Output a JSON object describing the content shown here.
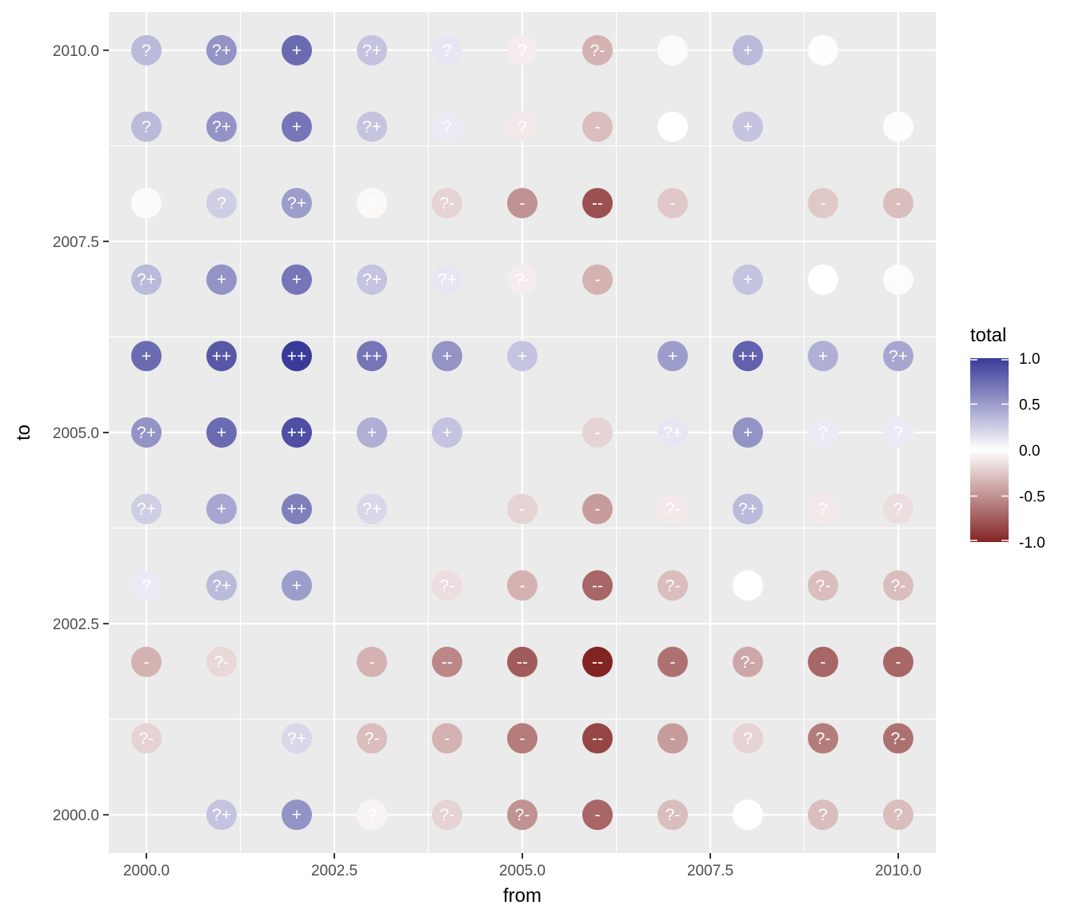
{
  "chart_data": {
    "type": "scatter",
    "title": "",
    "xlabel": "from",
    "ylabel": "to",
    "xlim": [
      1999.5,
      2010.5
    ],
    "ylim": [
      1999.5,
      2010.5
    ],
    "x_ticks": [
      2000,
      2002.5,
      2005,
      2007.5,
      2010
    ],
    "y_ticks": [
      2000,
      2002.5,
      2005,
      2007.5,
      2010
    ],
    "x_tick_labels": [
      "2000.0",
      "2002.5",
      "2005.0",
      "2007.5",
      "2010.0"
    ],
    "y_tick_labels": [
      "2000.0",
      "2002.5",
      "2005.0",
      "2007.5",
      "2010.0"
    ],
    "grid": true,
    "legend": {
      "title": "total",
      "position": "right",
      "range": [
        -1,
        1
      ],
      "breaks": [
        1.0,
        0.5,
        0.0,
        -0.5,
        -1.0
      ],
      "break_labels": [
        "1.0",
        "0.5",
        "0.0",
        "-0.5",
        "-1.0"
      ],
      "low_color": "#832424",
      "mid_color": "#ffffff",
      "high_color": "#3a3a98"
    },
    "point_columns": [
      "from",
      "to",
      "total",
      "label"
    ],
    "points": [
      [
        2000,
        2010,
        0.35,
        "?"
      ],
      [
        2001,
        2010,
        0.55,
        "?+"
      ],
      [
        2002,
        2010,
        0.75,
        "+"
      ],
      [
        2003,
        2010,
        0.3,
        "?+"
      ],
      [
        2004,
        2010,
        0.12,
        "?"
      ],
      [
        2005,
        2010,
        -0.08,
        "?"
      ],
      [
        2006,
        2010,
        -0.35,
        "?-"
      ],
      [
        2007,
        2010,
        0.02,
        "?"
      ],
      [
        2008,
        2010,
        0.35,
        "+"
      ],
      [
        2009,
        2010,
        0.01,
        "?"
      ],
      [
        2000,
        2009,
        0.35,
        "?"
      ],
      [
        2001,
        2009,
        0.55,
        "?+"
      ],
      [
        2002,
        2009,
        0.7,
        "+"
      ],
      [
        2003,
        2009,
        0.3,
        "?+"
      ],
      [
        2004,
        2009,
        0.1,
        "?"
      ],
      [
        2005,
        2009,
        -0.1,
        "?"
      ],
      [
        2006,
        2009,
        -0.3,
        "-"
      ],
      [
        2007,
        2009,
        0.0,
        "?"
      ],
      [
        2008,
        2009,
        0.3,
        "+"
      ],
      [
        2010,
        2009,
        -0.01,
        "?"
      ],
      [
        2000,
        2008,
        0.02,
        "?"
      ],
      [
        2001,
        2008,
        0.25,
        "?"
      ],
      [
        2002,
        2008,
        0.5,
        "?+"
      ],
      [
        2003,
        2008,
        -0.03,
        "?"
      ],
      [
        2004,
        2008,
        -0.2,
        "?-"
      ],
      [
        2005,
        2008,
        -0.5,
        "-"
      ],
      [
        2006,
        2008,
        -0.8,
        "--"
      ],
      [
        2007,
        2008,
        -0.25,
        "-"
      ],
      [
        2009,
        2008,
        -0.25,
        "-"
      ],
      [
        2010,
        2008,
        -0.3,
        "-"
      ],
      [
        2000,
        2007,
        0.35,
        "?+"
      ],
      [
        2001,
        2007,
        0.55,
        "+"
      ],
      [
        2002,
        2007,
        0.7,
        "+"
      ],
      [
        2003,
        2007,
        0.3,
        "?+"
      ],
      [
        2004,
        2007,
        0.12,
        "?+"
      ],
      [
        2005,
        2007,
        -0.08,
        "?-"
      ],
      [
        2006,
        2007,
        -0.35,
        "-"
      ],
      [
        2008,
        2007,
        0.3,
        "+"
      ],
      [
        2009,
        2007,
        0.0,
        "?"
      ],
      [
        2010,
        2007,
        -0.02,
        "?"
      ],
      [
        2000,
        2006,
        0.75,
        "+"
      ],
      [
        2001,
        2006,
        0.85,
        "++"
      ],
      [
        2002,
        2006,
        1.0,
        "++"
      ],
      [
        2003,
        2006,
        0.7,
        "++"
      ],
      [
        2004,
        2006,
        0.55,
        "+"
      ],
      [
        2005,
        2006,
        0.3,
        "+"
      ],
      [
        2007,
        2006,
        0.5,
        "+"
      ],
      [
        2008,
        2006,
        0.8,
        "++"
      ],
      [
        2009,
        2006,
        0.4,
        "+"
      ],
      [
        2010,
        2006,
        0.45,
        "?+"
      ],
      [
        2000,
        2005,
        0.55,
        "?+"
      ],
      [
        2001,
        2005,
        0.75,
        "+"
      ],
      [
        2002,
        2005,
        0.9,
        "++"
      ],
      [
        2003,
        2005,
        0.4,
        "+"
      ],
      [
        2004,
        2005,
        0.3,
        "+"
      ],
      [
        2006,
        2005,
        -0.2,
        "-"
      ],
      [
        2007,
        2005,
        0.12,
        "?+"
      ],
      [
        2008,
        2005,
        0.55,
        "+"
      ],
      [
        2009,
        2005,
        0.1,
        "?"
      ],
      [
        2010,
        2005,
        0.1,
        "?"
      ],
      [
        2000,
        2004,
        0.25,
        "?+"
      ],
      [
        2001,
        2004,
        0.45,
        "+"
      ],
      [
        2002,
        2004,
        0.65,
        "++"
      ],
      [
        2003,
        2004,
        0.2,
        "?+"
      ],
      [
        2005,
        2004,
        -0.2,
        "-"
      ],
      [
        2006,
        2004,
        -0.45,
        "-"
      ],
      [
        2007,
        2004,
        -0.1,
        "?-"
      ],
      [
        2008,
        2004,
        0.35,
        "?+"
      ],
      [
        2009,
        2004,
        -0.1,
        "?"
      ],
      [
        2010,
        2004,
        -0.15,
        "?"
      ],
      [
        2000,
        2003,
        0.1,
        "?"
      ],
      [
        2001,
        2003,
        0.35,
        "?+"
      ],
      [
        2002,
        2003,
        0.5,
        "+"
      ],
      [
        2004,
        2003,
        -0.15,
        "?-"
      ],
      [
        2005,
        2003,
        -0.35,
        "-"
      ],
      [
        2006,
        2003,
        -0.7,
        "--"
      ],
      [
        2007,
        2003,
        -0.3,
        "?-"
      ],
      [
        2008,
        2003,
        0.0,
        "?"
      ],
      [
        2009,
        2003,
        -0.3,
        "?-"
      ],
      [
        2010,
        2003,
        -0.3,
        "?-"
      ],
      [
        2000,
        2002,
        -0.35,
        "-"
      ],
      [
        2001,
        2002,
        -0.18,
        "?-"
      ],
      [
        2003,
        2002,
        -0.35,
        "-"
      ],
      [
        2004,
        2002,
        -0.55,
        "--"
      ],
      [
        2005,
        2002,
        -0.75,
        "--"
      ],
      [
        2006,
        2002,
        -1.0,
        "--"
      ],
      [
        2007,
        2002,
        -0.65,
        "-"
      ],
      [
        2008,
        2002,
        -0.4,
        "?-"
      ],
      [
        2009,
        2002,
        -0.7,
        "-"
      ],
      [
        2010,
        2002,
        -0.7,
        "-"
      ],
      [
        2000,
        2001,
        -0.2,
        "?-"
      ],
      [
        2002,
        2001,
        0.2,
        "?+"
      ],
      [
        2003,
        2001,
        -0.3,
        "?-"
      ],
      [
        2004,
        2001,
        -0.35,
        "-"
      ],
      [
        2005,
        2001,
        -0.6,
        "-"
      ],
      [
        2006,
        2001,
        -0.85,
        "--"
      ],
      [
        2007,
        2001,
        -0.45,
        "-"
      ],
      [
        2008,
        2001,
        -0.2,
        "?"
      ],
      [
        2009,
        2001,
        -0.6,
        "?-"
      ],
      [
        2010,
        2001,
        -0.65,
        "?-"
      ],
      [
        2001,
        2000,
        0.3,
        "?+"
      ],
      [
        2002,
        2000,
        0.55,
        "+"
      ],
      [
        2003,
        2000,
        -0.05,
        "?"
      ],
      [
        2004,
        2000,
        -0.2,
        "?-"
      ],
      [
        2005,
        2000,
        -0.5,
        "?-"
      ],
      [
        2006,
        2000,
        -0.7,
        "-"
      ],
      [
        2007,
        2000,
        -0.3,
        "?-"
      ],
      [
        2008,
        2000,
        0.0,
        "?"
      ],
      [
        2009,
        2000,
        -0.3,
        "?"
      ],
      [
        2010,
        2000,
        -0.3,
        "?"
      ]
    ]
  }
}
